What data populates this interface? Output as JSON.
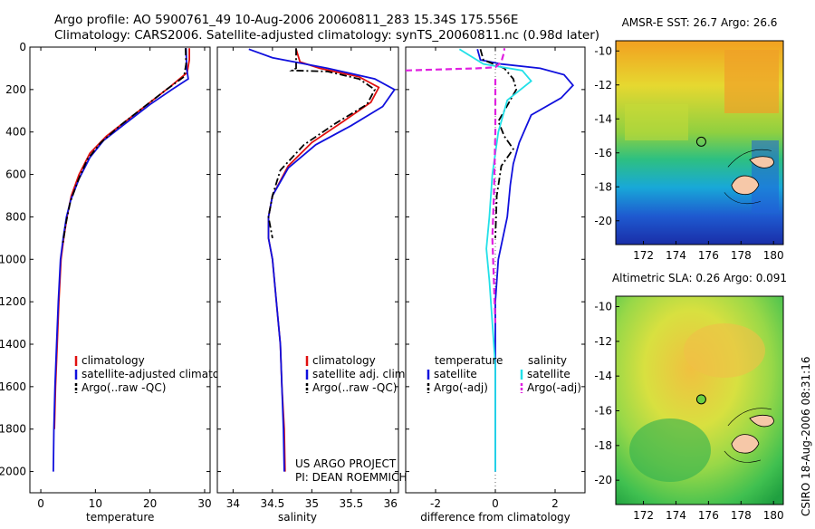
{
  "header": {
    "line1": "Argo profile: AO 5900761_49 10-Aug-2006 20060811_283 15.34S 175.556E",
    "line2": "Climatology: CARS2006. Satellite-adjusted climatology: synTS_20060811.nc (0.98d later)"
  },
  "credits": {
    "project": "US ARGO PROJECT",
    "pi": "PI: DEAN ROEMMICH"
  },
  "stamp": "CSIRO 18-Aug-2006 08:31:16",
  "colors": {
    "red": "#e01010",
    "blue": "#1010dd",
    "black": "#000000",
    "cyan": "#22e0e8",
    "magenta": "#e020e0"
  },
  "chart_data": [
    {
      "type": "line",
      "xlabel": "temperature",
      "xlim": [
        -2,
        31
      ],
      "ylim": [
        0,
        2100
      ],
      "xticks": [
        0,
        10,
        20,
        30
      ],
      "yticks": [
        0,
        200,
        400,
        600,
        800,
        1000,
        1200,
        1400,
        1600,
        1800,
        2000
      ],
      "xtick_labels": [
        "0",
        "10",
        "20",
        "30"
      ],
      "ytick_labels": [
        "0",
        "200",
        "400",
        "600",
        "800",
        "1000",
        "1200",
        "1400",
        "1600",
        "1800",
        "2000"
      ],
      "legend": [
        "climatology",
        "satellite-adjusted climatology",
        "Argo(..raw -QC)"
      ],
      "legend_placement": "lower-right",
      "series": [
        {
          "name": "climatology",
          "color": "red",
          "dash": false,
          "points": [
            [
              27.2,
              5
            ],
            [
              27.2,
              60
            ],
            [
              26.8,
              120
            ],
            [
              24,
              180
            ],
            [
              20,
              260
            ],
            [
              16,
              340
            ],
            [
              12,
              420
            ],
            [
              9,
              500
            ],
            [
              7,
              600
            ],
            [
              5.6,
              700
            ],
            [
              4.8,
              800
            ],
            [
              4.2,
              900
            ],
            [
              3.7,
              1000
            ],
            [
              3.3,
              1200
            ],
            [
              3.0,
              1400
            ],
            [
              2.7,
              1600
            ],
            [
              2.5,
              1800
            ]
          ]
        },
        {
          "name": "satellite-adjusted climatology",
          "color": "blue",
          "dash": false,
          "points": [
            [
              26.6,
              5
            ],
            [
              26.7,
              100
            ],
            [
              27,
              150
            ],
            [
              24,
              200
            ],
            [
              20,
              270
            ],
            [
              15.5,
              360
            ],
            [
              11.5,
              440
            ],
            [
              9,
              520
            ],
            [
              7,
              620
            ],
            [
              5.5,
              720
            ],
            [
              4.7,
              800
            ],
            [
              4.1,
              900
            ],
            [
              3.6,
              1000
            ],
            [
              3.2,
              1200
            ],
            [
              2.9,
              1400
            ],
            [
              2.6,
              1600
            ],
            [
              2.4,
              1800
            ],
            [
              2.3,
              2000
            ]
          ]
        },
        {
          "name": "Argo(..raw -QC)",
          "color": "black",
          "dash": true,
          "points": [
            [
              26.5,
              5
            ],
            [
              26.6,
              80
            ],
            [
              26.2,
              140
            ],
            [
              23,
              200
            ],
            [
              19,
              280
            ],
            [
              14.5,
              370
            ],
            [
              11,
              450
            ],
            [
              8.5,
              530
            ],
            [
              6.8,
              630
            ],
            [
              5.4,
              730
            ],
            [
              4.6,
              830
            ],
            [
              4.0,
              930
            ]
          ]
        }
      ]
    },
    {
      "type": "line",
      "xlabel": "salinity",
      "xlim": [
        33.8,
        36.1
      ],
      "ylim": [
        0,
        2100
      ],
      "xticks": [
        34,
        34.5,
        35,
        35.5,
        36
      ],
      "xtick_labels": [
        "34",
        "34.5",
        "35",
        "35.5",
        "36"
      ],
      "legend": [
        "climatology",
        "satellite adj. clim.",
        "Argo(..raw -QC)"
      ],
      "legend_placement": "lower-right",
      "series": [
        {
          "name": "climatology",
          "color": "red",
          "dash": false,
          "points": [
            [
              34.8,
              10
            ],
            [
              34.85,
              70
            ],
            [
              35.1,
              100
            ],
            [
              35.6,
              140
            ],
            [
              35.85,
              190
            ],
            [
              35.75,
              260
            ],
            [
              35.4,
              350
            ],
            [
              35.0,
              450
            ],
            [
              34.7,
              560
            ],
            [
              34.5,
              700
            ],
            [
              34.45,
              800
            ],
            [
              34.45,
              900
            ],
            [
              34.5,
              1000
            ],
            [
              34.55,
              1200
            ],
            [
              34.6,
              1400
            ],
            [
              34.62,
              1600
            ],
            [
              34.65,
              1800
            ],
            [
              34.66,
              2000
            ]
          ]
        },
        {
          "name": "satellite adj. clim.",
          "color": "blue",
          "dash": false,
          "points": [
            [
              34.2,
              10
            ],
            [
              34.5,
              50
            ],
            [
              35.2,
              100
            ],
            [
              35.8,
              150
            ],
            [
              36.05,
              200
            ],
            [
              35.9,
              280
            ],
            [
              35.5,
              370
            ],
            [
              35.05,
              460
            ],
            [
              34.7,
              570
            ],
            [
              34.5,
              700
            ],
            [
              34.45,
              800
            ],
            [
              34.45,
              900
            ],
            [
              34.5,
              1000
            ],
            [
              34.55,
              1200
            ],
            [
              34.6,
              1400
            ],
            [
              34.62,
              1600
            ],
            [
              34.64,
              1800
            ],
            [
              34.65,
              2000
            ]
          ]
        },
        {
          "name": "Argo(..raw -QC)",
          "color": "black",
          "dash": true,
          "points": [
            [
              34.8,
              5
            ],
            [
              34.8,
              100
            ],
            [
              34.75,
              110
            ],
            [
              35.2,
              115
            ],
            [
              35.6,
              150
            ],
            [
              35.8,
              200
            ],
            [
              35.7,
              270
            ],
            [
              35.3,
              360
            ],
            [
              34.9,
              460
            ],
            [
              34.6,
              580
            ],
            [
              34.5,
              700
            ],
            [
              34.45,
              800
            ],
            [
              34.5,
              900
            ]
          ]
        }
      ]
    },
    {
      "type": "line",
      "xlabel": "difference from climatology",
      "xlim": [
        -3.0,
        3.0
      ],
      "ylim": [
        0,
        2100
      ],
      "xticks": [
        -2,
        0,
        2
      ],
      "xtick_labels": [
        "-2",
        "0",
        "2"
      ],
      "legend": [
        "temperature",
        "satellite",
        "Argo(-adj)",
        "salinity",
        "satellite",
        "Argo(-adj)"
      ],
      "legend_placement": "lower-center",
      "series": [
        {
          "name": "satellite",
          "color": "blue",
          "dash": false,
          "points": [
            [
              -0.6,
              10
            ],
            [
              -0.5,
              60
            ],
            [
              0.2,
              80
            ],
            [
              1.5,
              100
            ],
            [
              2.3,
              130
            ],
            [
              2.6,
              180
            ],
            [
              2.2,
              240
            ],
            [
              1.2,
              320
            ],
            [
              0.8,
              450
            ],
            [
              0.6,
              550
            ],
            [
              0.5,
              650
            ],
            [
              0.4,
              800
            ],
            [
              0.1,
              1000
            ],
            [
              0,
              1200
            ],
            [
              0,
              2000
            ]
          ]
        },
        {
          "name": "Argo(-adj)",
          "color": "black",
          "dash": true,
          "points": [
            [
              -0.5,
              10
            ],
            [
              -0.4,
              60
            ],
            [
              0.3,
              100
            ],
            [
              0.6,
              150
            ],
            [
              0.7,
              200
            ],
            [
              0.3,
              300
            ],
            [
              0.1,
              350
            ],
            [
              0.3,
              420
            ],
            [
              0.6,
              480
            ],
            [
              0.2,
              560
            ],
            [
              0.05,
              700
            ],
            [
              0,
              900
            ]
          ]
        },
        {
          "name": "satellite",
          "color": "cyan",
          "dash": false,
          "points": [
            [
              -1.2,
              10
            ],
            [
              -0.4,
              80
            ],
            [
              0.9,
              110
            ],
            [
              1.2,
              160
            ],
            [
              0.4,
              250
            ],
            [
              0.1,
              400
            ],
            [
              -0.1,
              600
            ],
            [
              -0.2,
              800
            ],
            [
              -0.3,
              950
            ],
            [
              -0.2,
              1100
            ],
            [
              -0.1,
              1300
            ],
            [
              0,
              1500
            ],
            [
              0,
              2000
            ]
          ]
        },
        {
          "name": "Argo(-adj)",
          "color": "magenta",
          "dash": true,
          "points": [
            [
              -3.0,
              110
            ],
            [
              -1.8,
              105
            ],
            [
              -0.6,
              100
            ],
            [
              0,
              95
            ],
            [
              0.2,
              70
            ],
            [
              0.3,
              20
            ],
            [
              0.3,
              5
            ]
          ]
        },
        {
          "name": "Argo(-adj)",
          "color": "magenta",
          "dash": true,
          "points": [
            [
              0,
              150
            ],
            [
              0,
              400
            ],
            [
              -0.05,
              700
            ],
            [
              -0.1,
              900
            ],
            [
              -0.05,
              1100
            ],
            [
              0,
              1300
            ]
          ]
        }
      ]
    },
    {
      "type": "heatmap",
      "title": "AMSR-E SST: 26.7  Argo: 26.6",
      "xlim": [
        170.3,
        180.6
      ],
      "ylim": [
        -21.4,
        -9.4
      ],
      "xticks": [
        172,
        174,
        176,
        178,
        180
      ],
      "yticks": [
        -10,
        -12,
        -14,
        -16,
        -18,
        -20
      ],
      "xtick_labels": [
        "172",
        "174",
        "176",
        "178",
        "180"
      ],
      "ytick_labels": [
        "-10",
        "-12",
        "-14",
        "-16",
        "-18",
        "-20"
      ],
      "marker": {
        "lon": 175.556,
        "lat": -15.34
      }
    },
    {
      "type": "heatmap",
      "title": "Altimetric SLA: 0.26  Argo: 0.091",
      "xlim": [
        170.3,
        180.6
      ],
      "ylim": [
        -21.4,
        -9.4
      ],
      "xticks": [
        172,
        174,
        176,
        178,
        180
      ],
      "yticks": [
        -10,
        -12,
        -14,
        -16,
        -18,
        -20
      ],
      "xtick_labels": [
        "172",
        "174",
        "176",
        "178",
        "180"
      ],
      "ytick_labels": [
        "-10",
        "-12",
        "-14",
        "-16",
        "-18",
        "-20"
      ],
      "marker": {
        "lon": 175.556,
        "lat": -15.34
      }
    }
  ]
}
